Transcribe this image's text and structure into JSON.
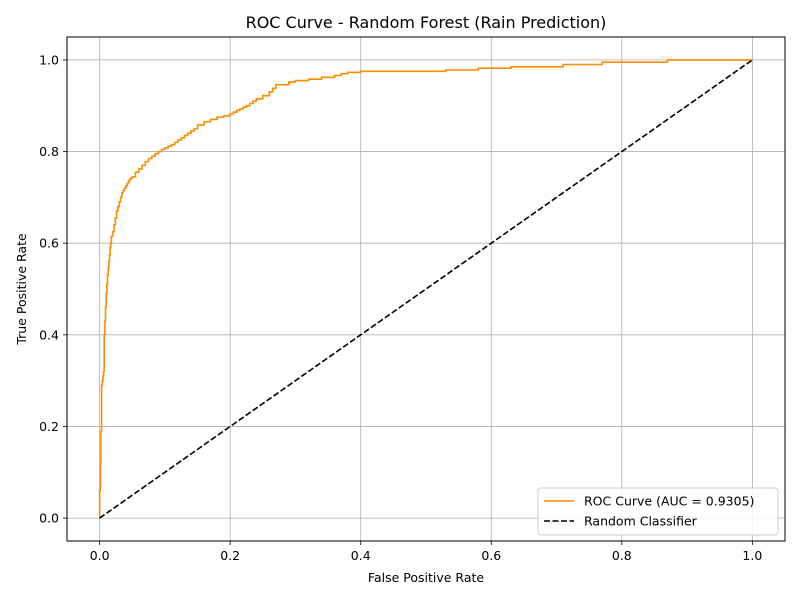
{
  "chart_data": {
    "type": "line",
    "title": "ROC Curve - Random Forest (Rain Prediction)",
    "xlabel": "False Positive Rate",
    "ylabel": "True Positive Rate",
    "xlim": [
      -0.05,
      1.05
    ],
    "ylim": [
      -0.05,
      1.05
    ],
    "xticks": [
      0.0,
      0.2,
      0.4,
      0.6,
      0.8,
      1.0
    ],
    "yticks": [
      0.0,
      0.2,
      0.4,
      0.6,
      0.8,
      1.0
    ],
    "xtick_labels": [
      "0.0",
      "0.2",
      "0.4",
      "0.6",
      "0.8",
      "1.0"
    ],
    "ytick_labels": [
      "0.0",
      "0.2",
      "0.4",
      "0.6",
      "0.8",
      "1.0"
    ],
    "grid": true,
    "legend_position": "lower-right",
    "series": [
      {
        "name": "ROC Curve (AUC = 0.9305)",
        "color": "#ff8c00",
        "style": "solid",
        "step": true,
        "x": [
          0.0,
          0.0,
          0.001,
          0.002,
          0.003,
          0.003,
          0.004,
          0.005,
          0.006,
          0.007,
          0.008,
          0.009,
          0.01,
          0.011,
          0.012,
          0.013,
          0.014,
          0.015,
          0.016,
          0.017,
          0.018,
          0.02,
          0.022,
          0.024,
          0.026,
          0.028,
          0.03,
          0.032,
          0.034,
          0.036,
          0.038,
          0.04,
          0.042,
          0.044,
          0.046,
          0.048,
          0.05,
          0.055,
          0.06,
          0.065,
          0.07,
          0.075,
          0.08,
          0.085,
          0.09,
          0.095,
          0.1,
          0.105,
          0.11,
          0.115,
          0.12,
          0.125,
          0.13,
          0.135,
          0.14,
          0.145,
          0.15,
          0.16,
          0.17,
          0.18,
          0.19,
          0.2,
          0.205,
          0.21,
          0.215,
          0.22,
          0.225,
          0.23,
          0.235,
          0.24,
          0.25,
          0.26,
          0.265,
          0.27,
          0.29,
          0.3,
          0.32,
          0.34,
          0.36,
          0.37,
          0.38,
          0.4,
          0.45,
          0.53,
          0.58,
          0.63,
          0.71,
          0.77,
          0.87,
          1.0
        ],
        "y": [
          0.0,
          0.06,
          0.12,
          0.19,
          0.26,
          0.29,
          0.3,
          0.31,
          0.32,
          0.4,
          0.43,
          0.46,
          0.49,
          0.51,
          0.53,
          0.545,
          0.56,
          0.575,
          0.59,
          0.6,
          0.615,
          0.625,
          0.64,
          0.655,
          0.67,
          0.68,
          0.69,
          0.7,
          0.71,
          0.715,
          0.72,
          0.725,
          0.73,
          0.735,
          0.74,
          0.742,
          0.745,
          0.755,
          0.762,
          0.77,
          0.778,
          0.785,
          0.79,
          0.795,
          0.8,
          0.805,
          0.808,
          0.812,
          0.815,
          0.82,
          0.825,
          0.83,
          0.835,
          0.84,
          0.845,
          0.85,
          0.858,
          0.865,
          0.87,
          0.875,
          0.878,
          0.882,
          0.886,
          0.89,
          0.893,
          0.897,
          0.9,
          0.905,
          0.91,
          0.915,
          0.922,
          0.93,
          0.938,
          0.946,
          0.952,
          0.955,
          0.958,
          0.962,
          0.966,
          0.97,
          0.973,
          0.975,
          0.975,
          0.978,
          0.982,
          0.985,
          0.99,
          0.995,
          1.0,
          1.0
        ]
      },
      {
        "name": "Random Classifier",
        "color": "#000000",
        "style": "dashed",
        "x": [
          0.0,
          1.0
        ],
        "y": [
          0.0,
          1.0
        ]
      }
    ]
  }
}
